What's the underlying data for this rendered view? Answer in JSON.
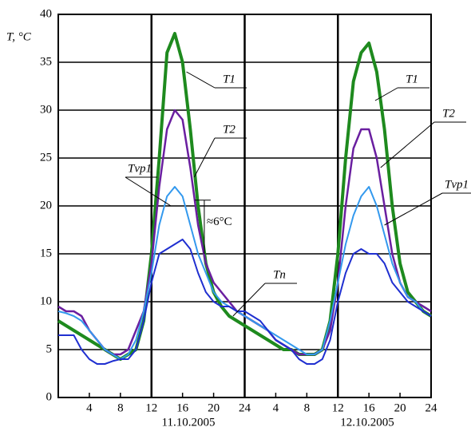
{
  "chart_data": {
    "type": "line",
    "y_label": "T, °C",
    "x": [
      0,
      1,
      2,
      3,
      4,
      5,
      6,
      7,
      8,
      9,
      10,
      11,
      12,
      13,
      14,
      15,
      16,
      17,
      18,
      19,
      20,
      21,
      22,
      23,
      24,
      25,
      26,
      27,
      28,
      29,
      30,
      31,
      32,
      33,
      34,
      35,
      36,
      37,
      38,
      39,
      40,
      41,
      42,
      43,
      44,
      45,
      46,
      47,
      48
    ],
    "series": [
      {
        "name": "T1",
        "color": "#1e8a1e",
        "width": 4,
        "values": [
          8,
          7.5,
          7,
          6.5,
          6,
          5.5,
          5,
          4.5,
          4,
          4.5,
          5,
          8,
          15,
          25,
          36,
          38,
          35,
          28,
          20,
          14,
          11,
          9.5,
          8.5,
          8,
          7.5,
          7,
          6.5,
          6,
          5.5,
          5,
          5,
          4.5,
          4.5,
          4.5,
          5,
          8,
          15,
          25,
          33,
          36,
          37,
          34,
          28,
          20,
          14,
          11,
          10,
          9,
          8.5
        ]
      },
      {
        "name": "T2",
        "color": "#6a1fa0",
        "width": 2.5,
        "values": [
          9.5,
          9,
          9,
          8.5,
          7,
          6,
          5,
          4.5,
          4.5,
          5,
          7,
          9,
          14,
          22,
          28,
          30,
          29,
          24,
          18,
          14,
          12,
          11,
          10,
          9,
          8.5,
          8,
          7.5,
          7,
          6,
          5.5,
          5,
          4.5,
          4.5,
          4.5,
          5,
          7,
          12,
          20,
          26,
          28,
          28,
          25,
          20,
          15,
          12,
          10.5,
          10,
          9.5,
          9
        ]
      },
      {
        "name": "Tvp1",
        "color": "#3399ee",
        "width": 2,
        "values": [
          9,
          8.8,
          8.5,
          8,
          7,
          6,
          5,
          4.5,
          4,
          4.5,
          6,
          9,
          13,
          18,
          21,
          22,
          21,
          18,
          15,
          13,
          11,
          10,
          9.5,
          9,
          8.5,
          8,
          7.5,
          7,
          6.5,
          6,
          5.5,
          5,
          4.5,
          4.5,
          5,
          8,
          12,
          16,
          19,
          21,
          22,
          20,
          17,
          14,
          12,
          10.5,
          10,
          9,
          8.5
        ]
      },
      {
        "name": "Tn",
        "color": "#1f2fd0",
        "width": 2,
        "values": [
          6.5,
          6.5,
          6.5,
          5,
          4,
          3.5,
          3.5,
          3.8,
          4,
          4,
          5,
          8,
          12,
          15,
          15.5,
          16,
          16.5,
          15.5,
          13,
          11,
          10,
          9.5,
          9.5,
          9,
          9,
          8.5,
          8,
          7,
          6,
          5.5,
          5,
          4,
          3.5,
          3.5,
          4,
          6,
          10,
          13,
          15,
          15.5,
          15,
          15,
          14,
          12,
          11,
          10,
          9.5,
          9,
          8.5
        ]
      }
    ],
    "xlim": [
      0,
      48
    ],
    "xticks": [
      4,
      8,
      12,
      16,
      20,
      24,
      {
        "value": 28,
        "label": "4"
      },
      {
        "value": 32,
        "label": "8"
      },
      {
        "value": 36,
        "label": "12"
      },
      {
        "value": 40,
        "label": "16"
      },
      {
        "value": 44,
        "label": "20"
      },
      {
        "value": 48,
        "label": "24"
      }
    ],
    "ylim": [
      0,
      40
    ],
    "yticks": [
      0,
      5,
      10,
      15,
      20,
      25,
      30,
      35,
      40
    ],
    "grid": true,
    "vertical_grid": [
      12,
      24,
      36
    ],
    "date_labels": [
      "11.10.2005",
      "12.10.2005"
    ],
    "annotation": "≈6°C"
  }
}
